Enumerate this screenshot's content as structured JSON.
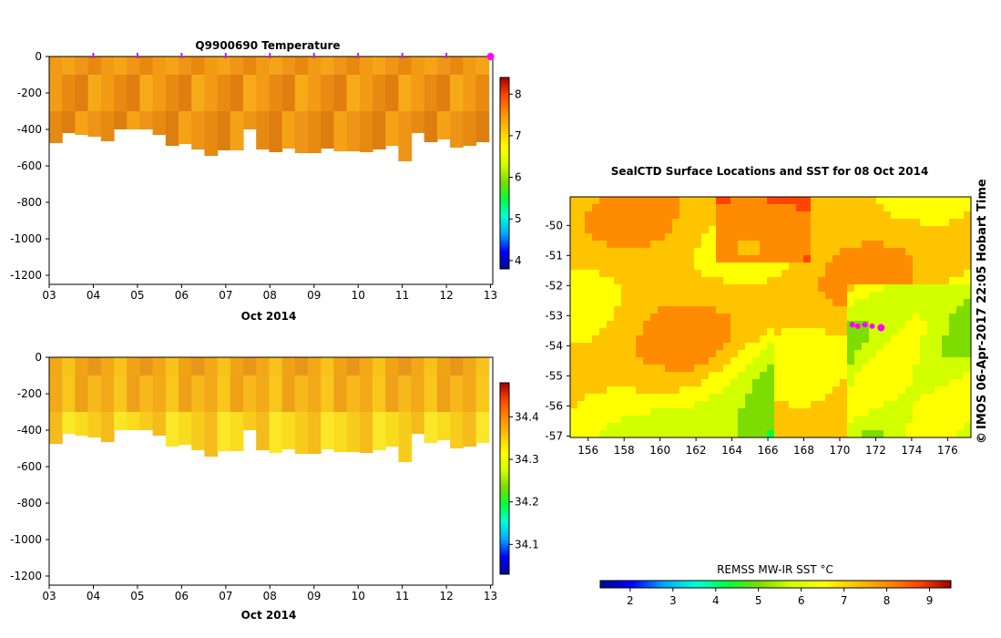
{
  "chart_data": [
    {
      "id": "temperature",
      "type": "heatmap",
      "title": "Q9900690  Temperature",
      "xlabel": "Oct 2014",
      "x_ticks": [
        "03",
        "04",
        "05",
        "06",
        "07",
        "08",
        "09",
        "10",
        "11",
        "12",
        "13"
      ],
      "xlim": [
        3,
        13.05
      ],
      "ylim": [
        -1250,
        0
      ],
      "y_ticks": [
        0,
        -200,
        -400,
        -600,
        -800,
        -1000,
        -1200
      ],
      "profile_days": [
        4,
        5,
        6,
        7,
        8,
        9,
        10,
        11,
        12,
        13
      ],
      "max_depth": [
        -475,
        -420,
        -430,
        -440,
        -465,
        -400,
        -400,
        -400,
        -430,
        -490,
        -480,
        -510,
        -545,
        -515,
        -515,
        -400,
        -510,
        -525,
        -505,
        -530,
        -530,
        -505,
        -520,
        -520,
        -525,
        -510,
        -490,
        -575,
        -420,
        -470,
        -455,
        -500,
        -490,
        -470
      ],
      "colorbar": {
        "ticks": [
          4,
          5,
          6,
          7,
          8
        ],
        "range": [
          3.8,
          8.4
        ]
      },
      "colorbar_colors": [
        "#000a8f",
        "#0000ff",
        "#00a8ff",
        "#00ffd8",
        "#00ff3c",
        "#7ddc00",
        "#d2ff00",
        "#ffff00",
        "#ffc400",
        "#ff8c00",
        "#ff4400",
        "#a00000"
      ],
      "color_bands": [
        {
          "d": [
            0,
            -100
          ],
          "c": [
            "#f29a16",
            "#f5a418",
            "#f0941a",
            "#e8880f"
          ]
        },
        {
          "d": [
            -100,
            -300
          ],
          "c": [
            "#f7aa18",
            "#f39b14",
            "#e98a12",
            "#e07f10"
          ]
        },
        {
          "d": [
            -300,
            -600
          ],
          "c": [
            "#f5a217",
            "#ee9416",
            "#e68a12",
            "#dd7e10"
          ]
        }
      ]
    },
    {
      "id": "salinity",
      "type": "heatmap",
      "title": "",
      "xlabel": "Oct 2014",
      "x_ticks": [
        "03",
        "04",
        "05",
        "06",
        "07",
        "08",
        "09",
        "10",
        "11",
        "12",
        "13"
      ],
      "xlim": [
        3,
        13.05
      ],
      "ylim": [
        -1250,
        0
      ],
      "y_ticks": [
        0,
        -200,
        -400,
        -600,
        -800,
        -1000,
        -1200
      ],
      "colorbar": {
        "ticks": [
          34.1,
          34.2,
          34.3,
          34.4
        ],
        "range": [
          34.03,
          34.48
        ]
      },
      "colorbar_colors": [
        "#000a8f",
        "#0000ff",
        "#00a8ff",
        "#00ffd8",
        "#00ff3c",
        "#7ddc00",
        "#d2ff00",
        "#ffff00",
        "#ffc400",
        "#ff8c00",
        "#ff4400",
        "#a00000"
      ],
      "color_bands": [
        {
          "d": [
            0,
            -100
          ],
          "c": [
            "#f2a816",
            "#f8c21a",
            "#f0a414",
            "#e8961a"
          ]
        },
        {
          "d": [
            -100,
            -300
          ],
          "c": [
            "#f6b81a",
            "#f2aa18",
            "#f9c61c",
            "#eea018"
          ]
        },
        {
          "d": [
            -300,
            -600
          ],
          "c": [
            "#fadc1e",
            "#f8cc1c",
            "#f4bb1a",
            "#fce628"
          ]
        }
      ]
    },
    {
      "id": "sst-map",
      "type": "heatmap",
      "title": "SealCTD Surface Locations and SST for 08 Oct 2014",
      "xlabel": "",
      "ylabel": "",
      "x_ticks": [
        "156",
        "158",
        "160",
        "162",
        "164",
        "166",
        "168",
        "170",
        "172",
        "174",
        "176"
      ],
      "y_ticks": [
        "-50",
        "-51",
        "-52",
        "-53",
        "-54",
        "-55",
        "-56",
        "-57"
      ],
      "xlim": [
        155,
        177.3
      ],
      "ylim": [
        -57.05,
        -49.05
      ],
      "colorbar_label": "REMSS MW-IR SST °C",
      "colorbar": {
        "ticks": [
          2,
          3,
          4,
          5,
          6,
          7,
          8,
          9
        ],
        "range": [
          1.3,
          9.5
        ]
      },
      "colorbar_colors": [
        "#000a8f",
        "#0000ff",
        "#00a8ff",
        "#00ffd8",
        "#00ff3c",
        "#7ddc00",
        "#d2ff00",
        "#ffff00",
        "#ffc400",
        "#ff8c00",
        "#ff4400",
        "#a00000"
      ],
      "track_points": [
        {
          "lon": 170.7,
          "lat": -53.3
        },
        {
          "lon": 171.0,
          "lat": -53.35
        },
        {
          "lon": 171.4,
          "lat": -53.3
        },
        {
          "lon": 171.8,
          "lat": -53.35
        },
        {
          "lon": 172.3,
          "lat": -53.4
        }
      ],
      "credit": "IMOS 06-Apr-2017 22:05 Hobart Time",
      "copyright_symbol": "©"
    }
  ]
}
